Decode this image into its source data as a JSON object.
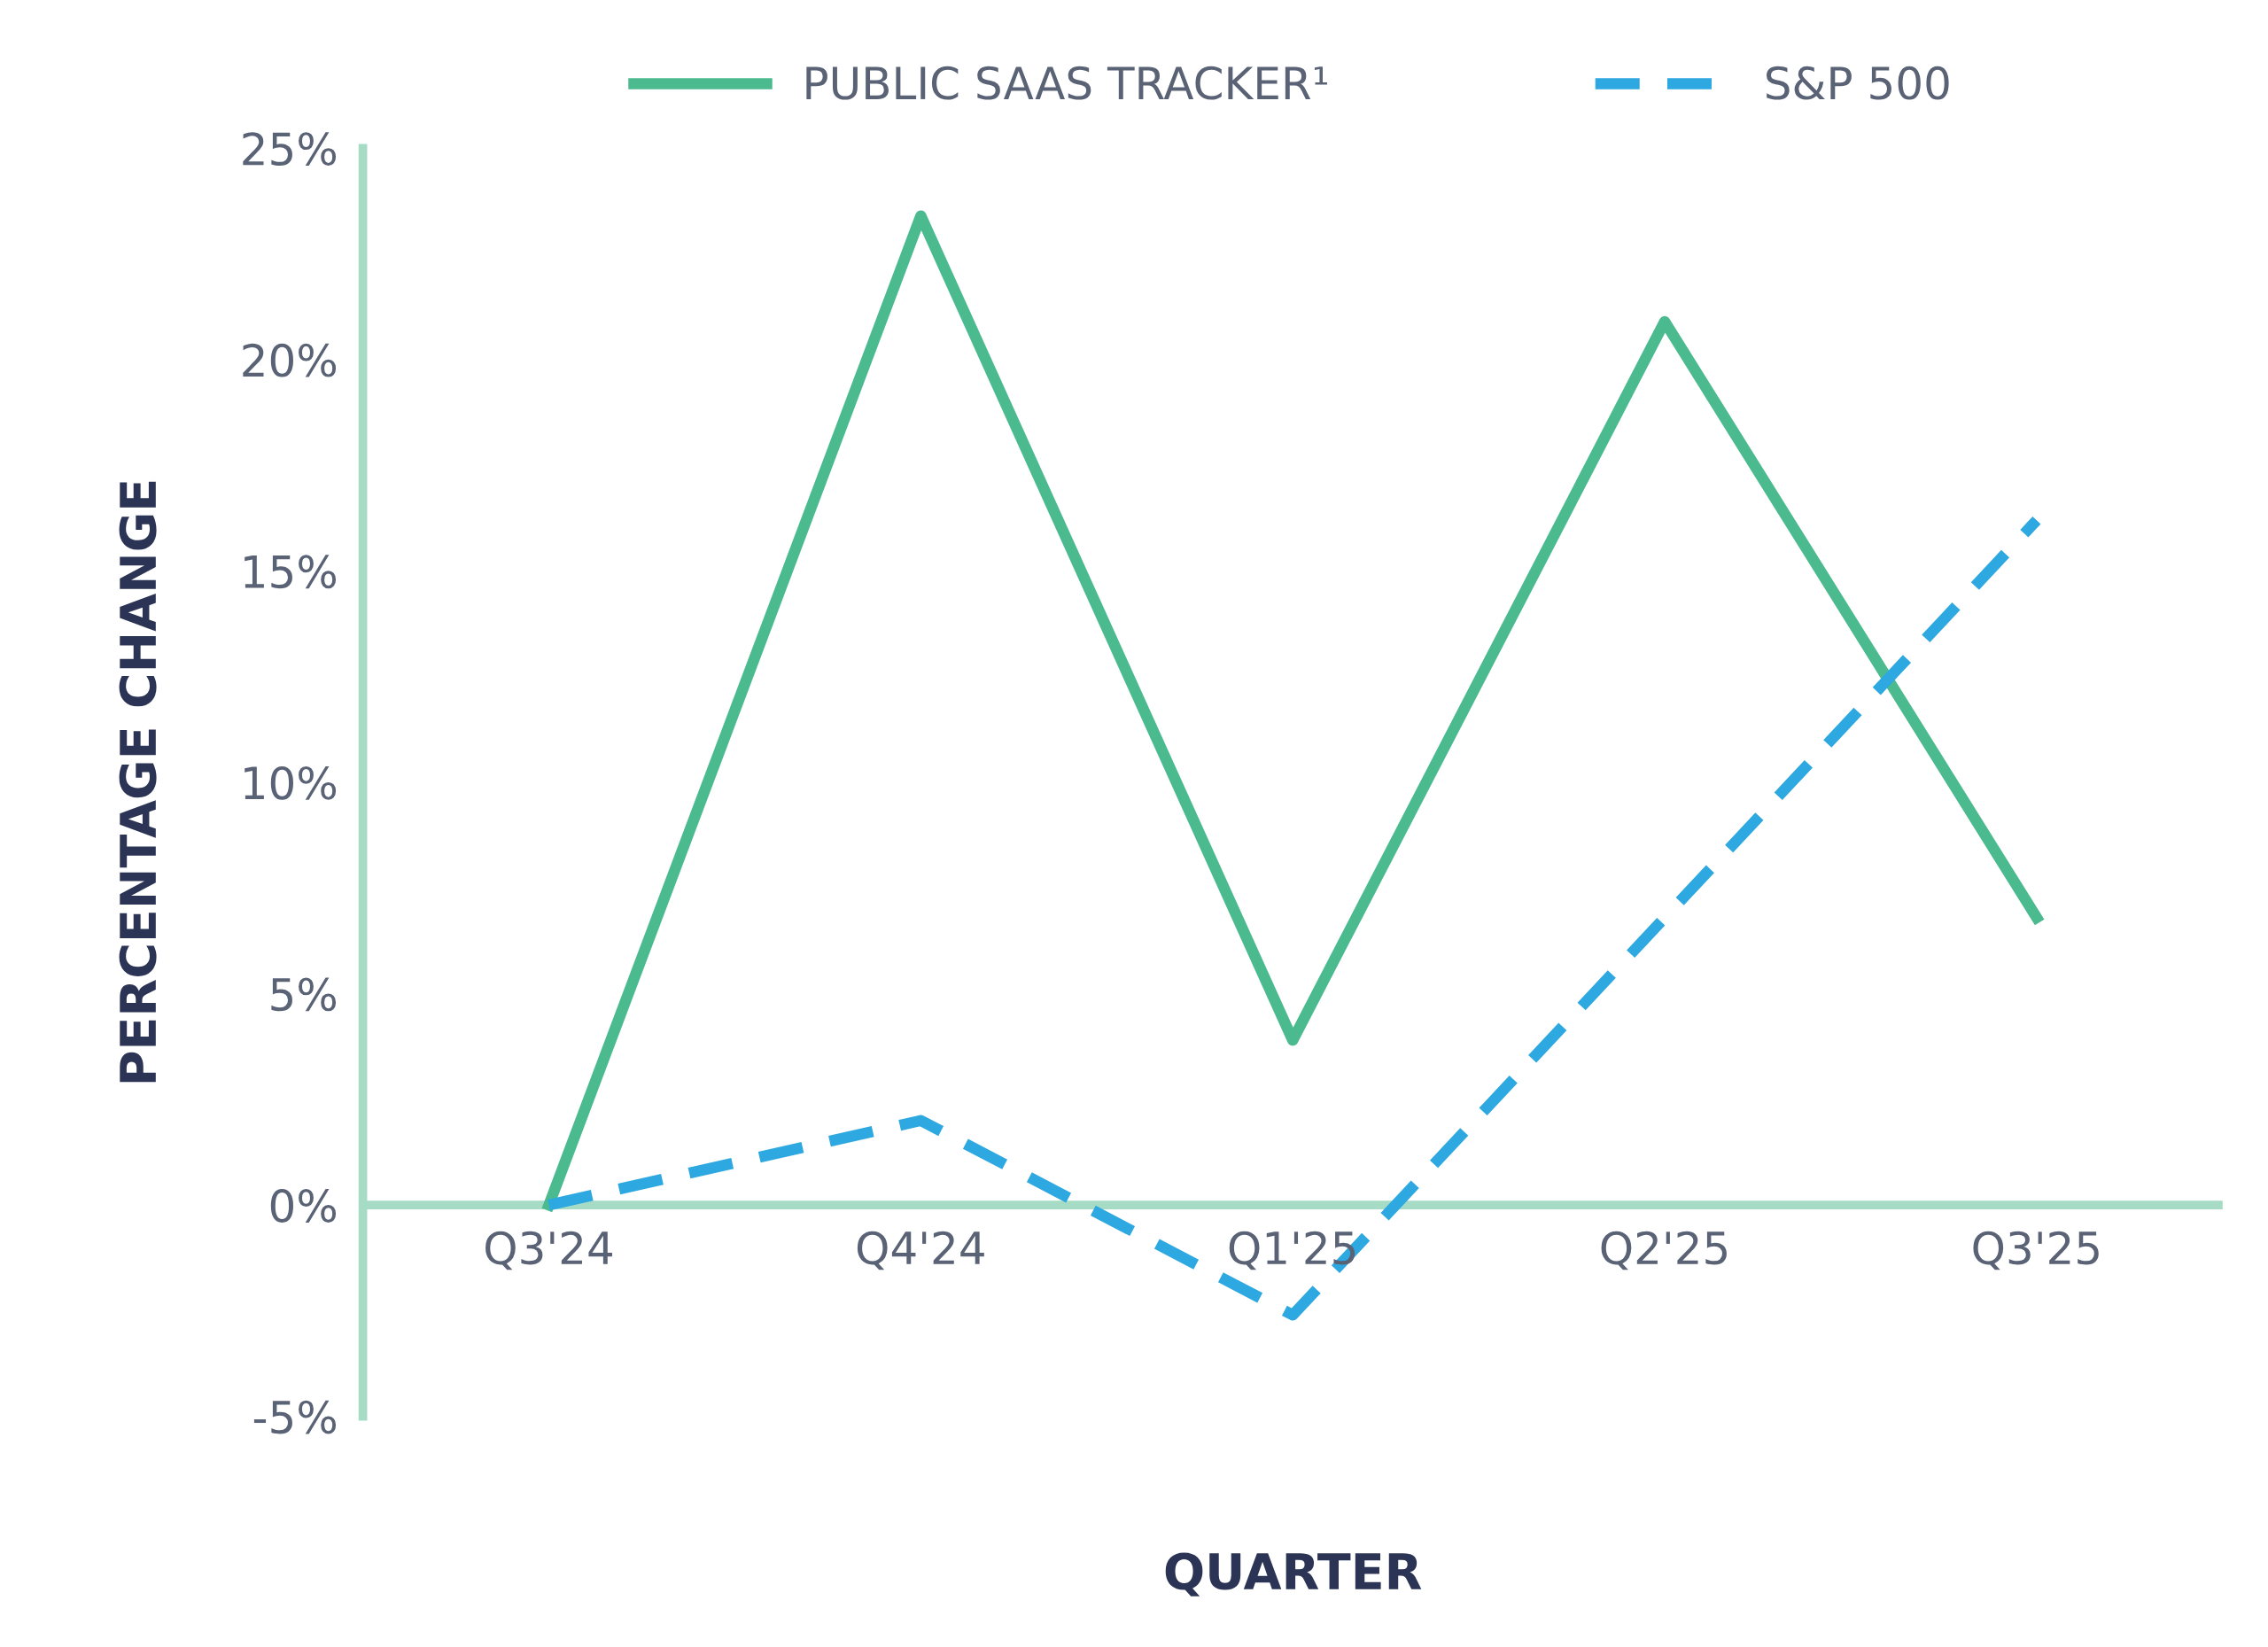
{
  "chart_data": {
    "type": "line",
    "xlabel": "QUARTER",
    "ylabel": "PERCENTAGE CHANGE",
    "categories": [
      "Q3'24",
      "Q4'24",
      "Q1'25",
      "Q2'25",
      "Q3'25"
    ],
    "series": [
      {
        "name": "PUBLIC SAAS TRACKER¹",
        "color": "#4bbb8f",
        "values": [
          0,
          23.4,
          3.9,
          20.9,
          6.8
        ],
        "line_style": "solid"
      },
      {
        "name": "S&P 500",
        "color": "#2ea8e0",
        "values": [
          0,
          2.0,
          -2.6,
          6.8,
          16.2
        ],
        "line_style": "dashed"
      }
    ],
    "ylim": [
      -5,
      25
    ],
    "yticks": [
      {
        "value": -5,
        "label": "-5%"
      },
      {
        "value": 0,
        "label": "0%"
      },
      {
        "value": 5,
        "label": "5%"
      },
      {
        "value": 10,
        "label": "10%"
      },
      {
        "value": 15,
        "label": "15%"
      },
      {
        "value": 20,
        "label": "20%"
      },
      {
        "value": 25,
        "label": "25%"
      }
    ],
    "legend": "top",
    "grid": false,
    "marker": "none"
  }
}
